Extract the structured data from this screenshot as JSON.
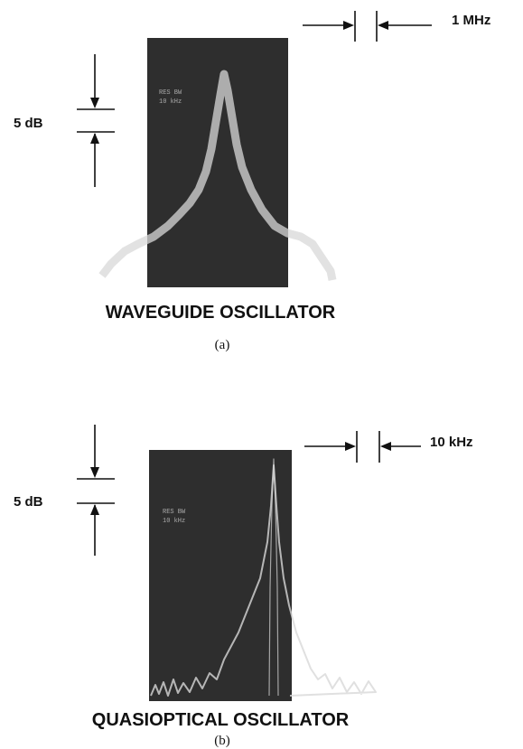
{
  "panels": [
    {
      "frequency_scale": "1 MHz",
      "amplitude_scale": "5 dB",
      "screen_text": [
        "RES BW",
        "10 kHz"
      ],
      "caption": "WAVEGUIDE OSCILLATOR",
      "label": "(a)"
    },
    {
      "frequency_scale": "10 kHz",
      "amplitude_scale": "5 dB",
      "screen_text": [
        "RES BW",
        "10 kHz"
      ],
      "caption": "QUASIOPTICAL OSCILLATOR",
      "label": "(b)"
    }
  ]
}
